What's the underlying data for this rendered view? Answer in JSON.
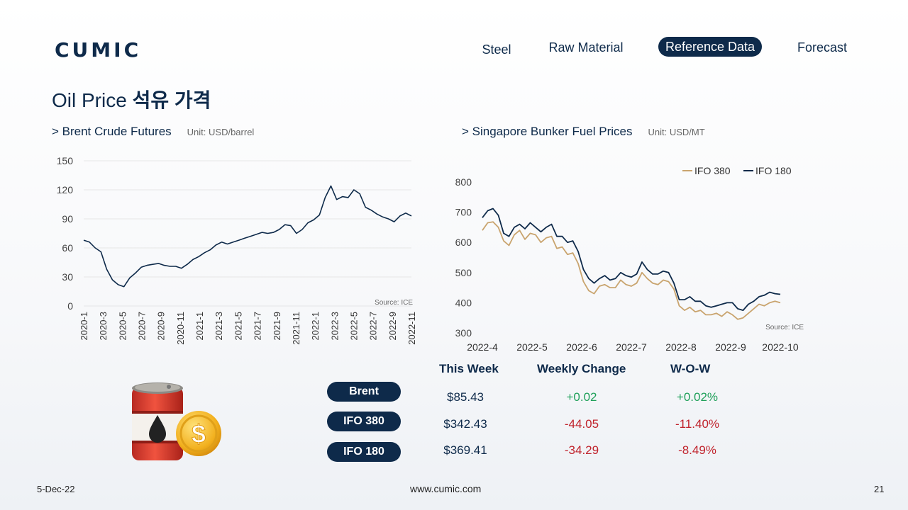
{
  "logo": "CUMIC",
  "nav": {
    "steel": "Steel",
    "raw_material": "Raw Material",
    "reference_data": "Reference Data",
    "forecast": "Forecast"
  },
  "page_title_en": "Oil Price",
  "page_title_kr": "석유 가격",
  "colors": {
    "navy": "#0e2a4a",
    "tan": "#c9a46e",
    "positive": "#1fa05a",
    "negative": "#c0232c"
  },
  "brent_section": {
    "title": "> Brent Crude Futures",
    "unit": "Unit: USD/barrel"
  },
  "bunker_section": {
    "title": "> Singapore Bunker Fuel Prices",
    "unit": "Unit: USD/MT"
  },
  "chart_data": [
    {
      "type": "line",
      "title": "> Brent Crude Futures",
      "ylabel": "Unit: USD/barrel",
      "source": "Source: ICE",
      "ylim": [
        0,
        150
      ],
      "yticks": [
        "0",
        "30",
        "60",
        "90",
        "120",
        "150"
      ],
      "xticks": [
        "2020-1",
        "2020-3",
        "2020-5",
        "2020-7",
        "2020-9",
        "2020-11",
        "2021-1",
        "2021-3",
        "2021-5",
        "2021-7",
        "2021-9",
        "2021-11",
        "2022-1",
        "2022-3",
        "2022-5",
        "2022-7",
        "2022-9",
        "2022-11"
      ],
      "grid": true,
      "series": [
        {
          "color": "#0e2a4a",
          "values": [
            68,
            66,
            60,
            56,
            38,
            27,
            22,
            20,
            29,
            34,
            40,
            42,
            43,
            44,
            42,
            41,
            41,
            39,
            43,
            48,
            51,
            55,
            58,
            63,
            66,
            64,
            66,
            68,
            70,
            72,
            74,
            76,
            75,
            76,
            79,
            84,
            83,
            75,
            79,
            86,
            89,
            94,
            112,
            124,
            110,
            113,
            112,
            120,
            116,
            102,
            99,
            95,
            92,
            90,
            87,
            93,
            96,
            93
          ]
        }
      ]
    },
    {
      "type": "line",
      "title": "> Singapore Bunker Fuel Prices",
      "ylabel": "Unit: USD/MT",
      "source": "Source: ICE",
      "ylim": [
        300,
        800
      ],
      "yticks": [
        "300",
        "400",
        "500",
        "600",
        "700",
        "800"
      ],
      "xticks": [
        "2022-4",
        "2022-5",
        "2022-6",
        "2022-7",
        "2022-8",
        "2022-9",
        "2022-10"
      ],
      "legend": "top-right",
      "grid": false,
      "series": [
        {
          "name": "IFO 380",
          "color": "#c9a46e",
          "values": [
            640,
            665,
            668,
            650,
            605,
            590,
            625,
            640,
            610,
            630,
            625,
            600,
            615,
            620,
            580,
            585,
            560,
            565,
            530,
            470,
            440,
            430,
            455,
            460,
            450,
            450,
            475,
            460,
            455,
            465,
            500,
            480,
            465,
            460,
            475,
            470,
            445,
            390,
            375,
            385,
            370,
            375,
            360,
            360,
            365,
            355,
            370,
            360,
            345,
            350,
            365,
            380,
            395,
            390,
            400,
            405,
            400
          ]
        },
        {
          "name": "IFO 180",
          "color": "#0e2a4a",
          "values": [
            682,
            705,
            712,
            690,
            630,
            620,
            650,
            660,
            645,
            665,
            650,
            635,
            650,
            660,
            620,
            620,
            600,
            605,
            570,
            510,
            480,
            465,
            480,
            490,
            475,
            480,
            500,
            490,
            485,
            495,
            535,
            510,
            495,
            495,
            505,
            500,
            465,
            410,
            410,
            420,
            405,
            405,
            390,
            385,
            390,
            395,
            400,
            400,
            380,
            375,
            395,
            405,
            420,
            425,
            435,
            430,
            428
          ]
        }
      ]
    }
  ],
  "table": {
    "headers": [
      "This Week",
      "Weekly Change",
      "W-O-W"
    ],
    "rows": [
      {
        "label": "Brent",
        "this_week": "$85.43",
        "change": "+0.02",
        "wow": "+0.02%"
      },
      {
        "label": "IFO 380",
        "this_week": "$342.43",
        "change": "-44.05",
        "wow": "-11.40%"
      },
      {
        "label": "IFO 180",
        "this_week": "$369.41",
        "change": "-34.29",
        "wow": "-8.49%"
      }
    ]
  },
  "footer": {
    "date": "5-Dec-22",
    "url": "www.cumic.com",
    "page": "21"
  },
  "icons": {
    "illustration": "oil-barrel-dollar-icon"
  }
}
